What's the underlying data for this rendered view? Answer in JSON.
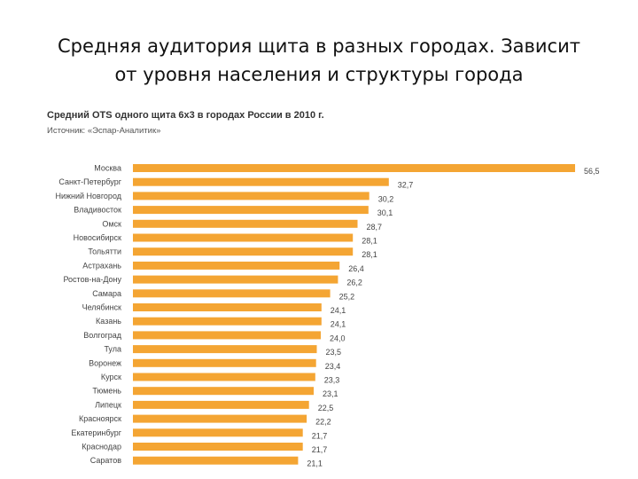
{
  "slide": {
    "title_line1": "Средняя аудитория щита в разных городах. Зависит",
    "title_line2": "от уровня населения и структуры города"
  },
  "chart_data": {
    "type": "bar",
    "orientation": "horizontal",
    "title": "Средний OTS одного щита 6x3 в городах России в 2010 г.",
    "source": "Источник: «Эспар-Аналитик»",
    "bar_color": "#F4A533",
    "categories": [
      "Москва",
      "Санкт-Петербург",
      "Нижний Новгород",
      "Владивосток",
      "Омск",
      "Новосибирск",
      "Тольятти",
      "Астрахань",
      "Ростов-на-Дону",
      "Самара",
      "Челябинск",
      "Казань",
      "Волгоград",
      "Тула",
      "Воронеж",
      "Курск",
      "Тюмень",
      "Липецк",
      "Красноярск",
      "Екатеринбург",
      "Краснодар",
      "Саратов"
    ],
    "values": [
      56.5,
      32.7,
      30.2,
      30.1,
      28.7,
      28.1,
      28.1,
      26.4,
      26.2,
      25.2,
      24.1,
      24.1,
      24.0,
      23.5,
      23.4,
      23.3,
      23.1,
      22.5,
      22.2,
      21.7,
      21.7,
      21.1
    ],
    "value_labels": [
      "56,5",
      "32,7",
      "30,2",
      "30,1",
      "28,7",
      "28,1",
      "28,1",
      "26,4",
      "26,2",
      "25,2",
      "24,1",
      "24,1",
      "24,0",
      "23,5",
      "23,4",
      "23,3",
      "23,1",
      "22,5",
      "22,2",
      "21,7",
      "21,7",
      "21,1"
    ],
    "xlim": [
      0,
      56.5
    ],
    "grid": false,
    "legend": "none"
  }
}
